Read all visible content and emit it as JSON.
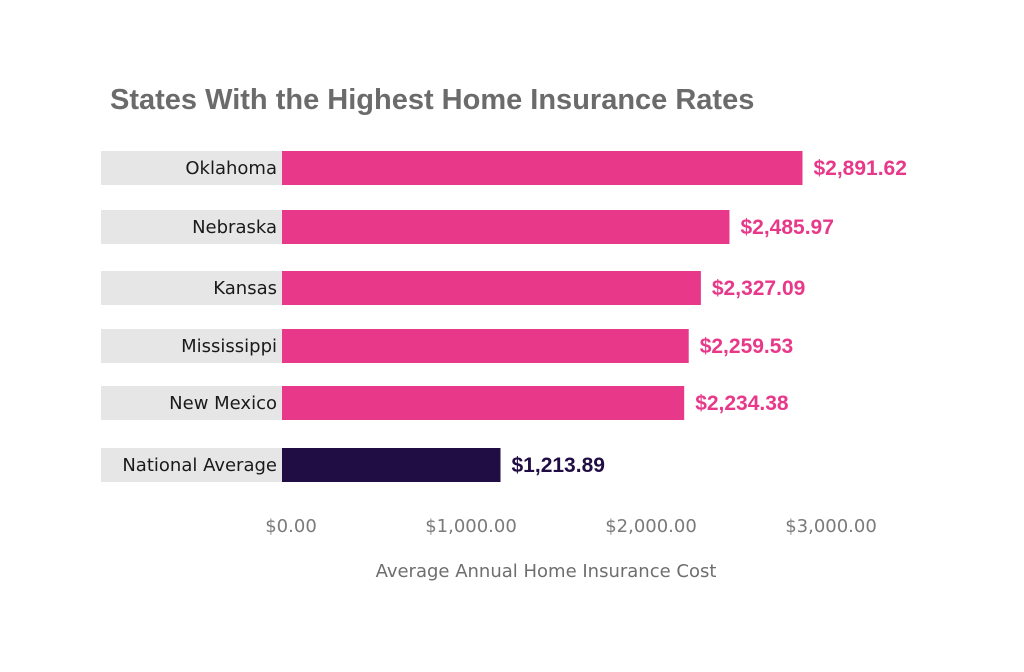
{
  "chart_data": {
    "type": "bar",
    "orientation": "horizontal",
    "title": "States With the Highest Home Insurance Rates",
    "xlabel": "Average Annual Home Insurance Cost",
    "ylabel": "",
    "categories": [
      "Oklahoma",
      "Nebraska",
      "Kansas",
      "Mississippi",
      "New Mexico",
      "National Average"
    ],
    "values": [
      2891.62,
      2485.97,
      2327.09,
      2259.53,
      2234.38,
      1213.89
    ],
    "value_labels": [
      "$2,891.62",
      "$2,485.97",
      "$2,327.09",
      "$2,259.53",
      "$2,234.38",
      "$1,213.89"
    ],
    "xlim": [
      0,
      3000
    ],
    "ticks": [
      0,
      1000,
      2000,
      3000
    ],
    "tick_labels": [
      "$0.00",
      "$1,000.00",
      "$2,000.00",
      "$3,000.00"
    ],
    "grid": false,
    "colors": {
      "state_bar": "#e8388a",
      "average_bar": "#200d43",
      "state_label": "#e8388a",
      "average_label": "#200d43",
      "label_background": "#e6e6e6"
    },
    "highlight_index": 5
  }
}
